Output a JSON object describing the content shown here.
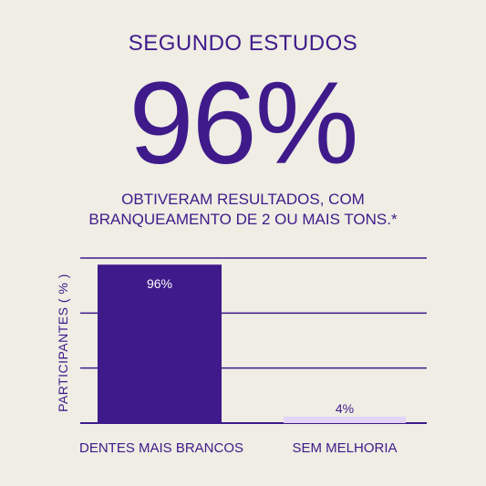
{
  "header": {
    "subtitle": "SEGUNDO ESTUDOS",
    "big_number": "96%",
    "description_line1": "OBTIVERAM RESULTADOS, COM",
    "description_line2": "BRANQUEAMENTO DE 2 OU MAIS TONS.*"
  },
  "colors": {
    "background": "#efede4",
    "text": "#3f1a8a",
    "bar_primary": "#3f1a8a",
    "bar_secondary": "#e2d5f7",
    "gridline": "#3f1a8a"
  },
  "chart_data": {
    "type": "bar",
    "categories": [
      "DENTES MAIS BRANCOS",
      "SEM MELHORIA"
    ],
    "values": [
      96,
      4
    ],
    "data_labels": [
      "96%",
      "4%"
    ],
    "ylabel": "PARTICIPANTES ( % )",
    "ylim": [
      0,
      100
    ],
    "grid": true
  }
}
